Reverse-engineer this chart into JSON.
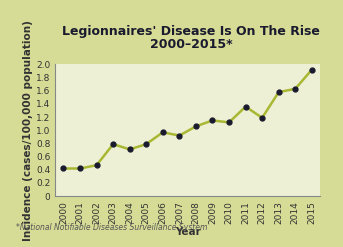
{
  "title_line1": "Legionnaires' Disease Is On The Rise",
  "title_line2": "2000–2015*",
  "xlabel": "Year",
  "ylabel": "Incidence (cases/100,000 population)",
  "footnote": "*National Notifiable Diseases Surveillance System",
  "years": [
    2000,
    2001,
    2002,
    2003,
    2004,
    2005,
    2006,
    2007,
    2008,
    2009,
    2010,
    2011,
    2012,
    2013,
    2014,
    2015
  ],
  "values": [
    0.42,
    0.42,
    0.47,
    0.79,
    0.71,
    0.79,
    0.97,
    0.92,
    1.06,
    1.15,
    1.12,
    1.36,
    1.19,
    1.58,
    1.63,
    1.92
  ],
  "line_color": "#a8b832",
  "marker_color": "#1a1a2e",
  "bg_outer": "#d6dc96",
  "bg_inner": "#eef0d5",
  "border_color": "#a8b832",
  "ylim": [
    0,
    2.0
  ],
  "title_fontsize": 9,
  "axis_label_fontsize": 7.5,
  "tick_fontsize": 6.5,
  "footnote_fontsize": 5.5
}
